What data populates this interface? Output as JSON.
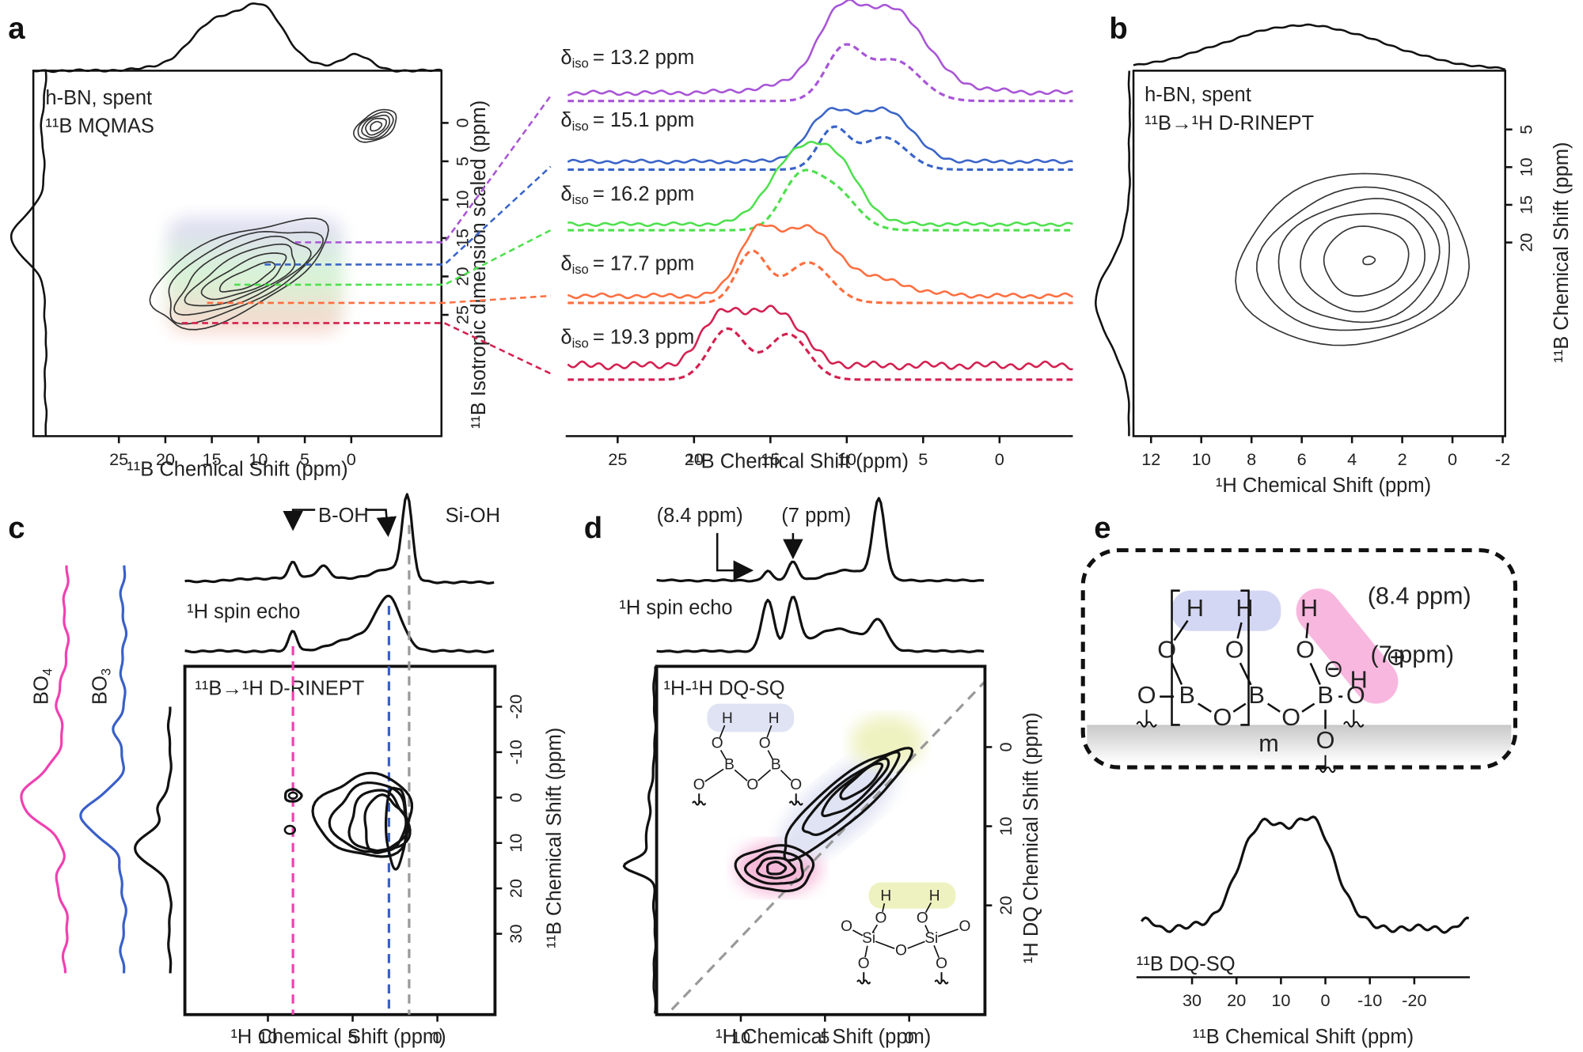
{
  "panels": {
    "a": {
      "letter": "a",
      "mqmas": {
        "labels": [
          "h-BN, spent",
          "¹¹B MQMAS"
        ],
        "x_label": "¹¹B Chemical Shift (ppm)",
        "xlim": [
          34.2,
          -9.7
        ],
        "xticks": [
          25,
          20,
          15,
          10,
          5,
          0
        ],
        "y_label": "¹¹B Isotropic dimension scaled (ppm)",
        "ylim": [
          -6.8,
          40.8
        ],
        "yticks": [
          0,
          5,
          10,
          15,
          20,
          25
        ]
      },
      "slices": {
        "x_label": "¹¹B Chemical Shift (ppm)",
        "xlim": [
          28.4,
          -4.8
        ],
        "xticks": [
          25,
          20,
          15,
          10,
          5,
          0
        ],
        "sites": [
          {
            "symbol": "δ",
            "sub": "iso",
            "text": "= 13.2 ppm",
            "color": "#a855d6"
          },
          {
            "symbol": "δ",
            "sub": "iso",
            "text": "= 15.1 ppm",
            "color": "#3a64c8"
          },
          {
            "symbol": "δ",
            "sub": "iso",
            "text": "= 16.2 ppm",
            "color": "#4ee04e"
          },
          {
            "symbol": "δ",
            "sub": "iso",
            "text": "= 17.7 ppm",
            "color": "#ff6e40"
          },
          {
            "symbol": "δ",
            "sub": "iso",
            "text": "= 19.3 ppm",
            "color": "#d42050"
          }
        ]
      }
    },
    "b": {
      "letter": "b",
      "labels": [
        "h-BN, spent",
        "¹¹B→¹H D-RINEPT"
      ],
      "x_label": "¹H Chemical Shift (ppm)",
      "xlim": [
        12.7,
        -2.1
      ],
      "xticks": [
        12,
        10,
        8,
        6,
        4,
        2,
        0,
        -2
      ],
      "y_label": "¹¹B Chemical Shift (ppm)",
      "ylim": [
        -2.8,
        45.7
      ],
      "yticks": [
        5,
        10,
        15,
        20
      ]
    },
    "c": {
      "letter": "c",
      "annotations": {
        "b_oh": "B-OH",
        "si_oh": "Si-OH",
        "spin_echo": "¹H spin echo",
        "rinept": "¹¹B→¹H D-RINEPT"
      },
      "projections": [
        {
          "text": "BO",
          "sub": "4",
          "color": "#f040b0"
        },
        {
          "text": "BO",
          "sub": "3",
          "color": "#3a5fc8"
        }
      ],
      "x_label": "¹H Chemical Shift (ppm)",
      "xlim": [
        14.9,
        -3.4
      ],
      "xticks": [
        10,
        5,
        0
      ],
      "y_label": "¹¹B Chemical Shift (ppm)",
      "ylim": [
        -28.9,
        47.8
      ],
      "yticks": [
        -20,
        -10,
        0,
        10,
        20,
        30
      ]
    },
    "d": {
      "letter": "d",
      "annotations": {
        "shift_84": "(8.4 ppm)",
        "shift_7": "(7 ppm)",
        "spin_echo": "¹H spin echo",
        "dqsq": "¹H-¹H DQ-SQ"
      },
      "x_label": "¹H Chemical Shift (ppm)",
      "xlim": [
        15,
        -4.5
      ],
      "xticks": [
        10,
        5,
        0
      ],
      "y_label": "¹H DQ Chemical Shift (ppm)",
      "ylim": [
        -10.2,
        33.8
      ],
      "yticks": [
        0,
        10,
        20
      ],
      "inset_boron": [
        "H",
        "H",
        "O",
        "O",
        "B",
        "B",
        "O",
        "O",
        "O"
      ],
      "inset_silicon": [
        "H",
        "H",
        "O",
        "O",
        "O",
        "Si",
        "O",
        "Si",
        "O",
        "O",
        "O"
      ]
    },
    "e": {
      "letter": "e",
      "atoms": [
        "H",
        "H",
        "H",
        "O",
        "O",
        "O",
        "B",
        "B",
        "B",
        "O",
        "O",
        "O",
        "O",
        "O",
        "H",
        "⊖",
        "⊕",
        "m",
        "(8.4 ppm)",
        "(7 ppm)"
      ],
      "spectrum_label": "¹¹B DQ-SQ",
      "x_label": "¹¹B Chemical Shift (ppm)",
      "xlim": [
        42.5,
        -32.5
      ],
      "xticks": [
        30,
        20,
        10,
        0,
        -10,
        -20
      ]
    }
  }
}
